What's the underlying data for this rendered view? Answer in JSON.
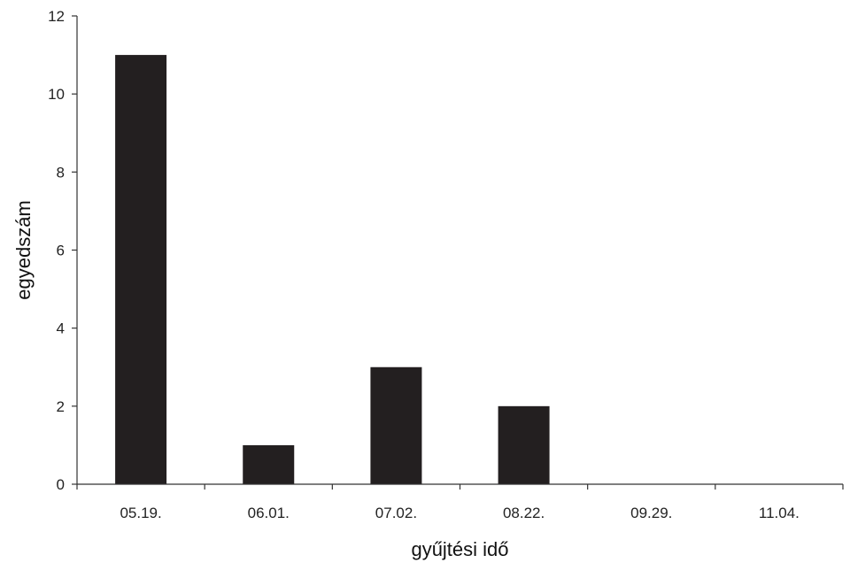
{
  "chart_data": {
    "type": "bar",
    "title": "",
    "xlabel": "gyűjtési idő",
    "ylabel": "egyedszám",
    "categories": [
      "05.19.",
      "06.01.",
      "07.02.",
      "08.22.",
      "09.29.",
      "11.04."
    ],
    "values": [
      11,
      1,
      3,
      2,
      0,
      0
    ],
    "ylim": [
      0,
      12
    ],
    "yticks": [
      0,
      2,
      4,
      6,
      8,
      10,
      12
    ],
    "grid": false,
    "legend": "none",
    "bar_color": "#231f20",
    "axis_color": "#333333"
  }
}
